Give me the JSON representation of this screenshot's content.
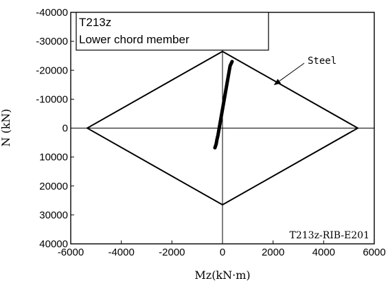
{
  "chart_data": {
    "type": "line",
    "xlabel": "Mz(kN·m)",
    "ylabel": "N (kN)",
    "xlim": [
      -6000,
      6000
    ],
    "ylim": [
      -40000,
      40000
    ],
    "y_inverted": true,
    "x_ticks": [
      -6000,
      -4000,
      -2000,
      0,
      2000,
      4000,
      6000
    ],
    "y_ticks": [
      -40000,
      -30000,
      -20000,
      -10000,
      0,
      10000,
      20000,
      30000,
      40000
    ],
    "x_tick_labels": [
      "-6000",
      "-4000",
      "-2000",
      "0",
      "2000",
      "4000",
      "6000"
    ],
    "y_tick_labels": [
      "-40000",
      "-30000",
      "-20000",
      "-10000",
      "0",
      "10000",
      "20000",
      "30000",
      "40000"
    ],
    "grid": false,
    "legend_box": {
      "position": "top-left",
      "lines": [
        "T213z",
        "Lower chord member"
      ]
    },
    "series": [
      {
        "name": "Steel",
        "points": [
          [
            0,
            -26500
          ],
          [
            5350,
            0
          ],
          [
            0,
            26500
          ],
          [
            -5350,
            0
          ],
          [
            0,
            -26500
          ]
        ]
      },
      {
        "points": [
          [
            -300,
            6800
          ],
          [
            -250,
            5500
          ],
          [
            -220,
            4000
          ],
          [
            -180,
            2500
          ],
          [
            -150,
            1000
          ],
          [
            -120,
            -500
          ],
          [
            -90,
            -2000
          ],
          [
            -60,
            -3500
          ],
          [
            -30,
            -5000
          ],
          [
            0,
            -6500
          ],
          [
            30,
            -8000
          ],
          [
            60,
            -9500
          ],
          [
            90,
            -11000
          ],
          [
            120,
            -12500
          ],
          [
            150,
            -14000
          ],
          [
            180,
            -15500
          ],
          [
            210,
            -17000
          ],
          [
            240,
            -18500
          ],
          [
            270,
            -20000
          ],
          [
            300,
            -21500
          ],
          [
            380,
            -23000
          ]
        ]
      }
    ],
    "annotations": [
      {
        "text": "Steel",
        "arrow_to": [
          2050,
          -15000
        ]
      },
      {
        "text": "T213z-RIB-E201",
        "position": "bottom-right"
      }
    ]
  }
}
